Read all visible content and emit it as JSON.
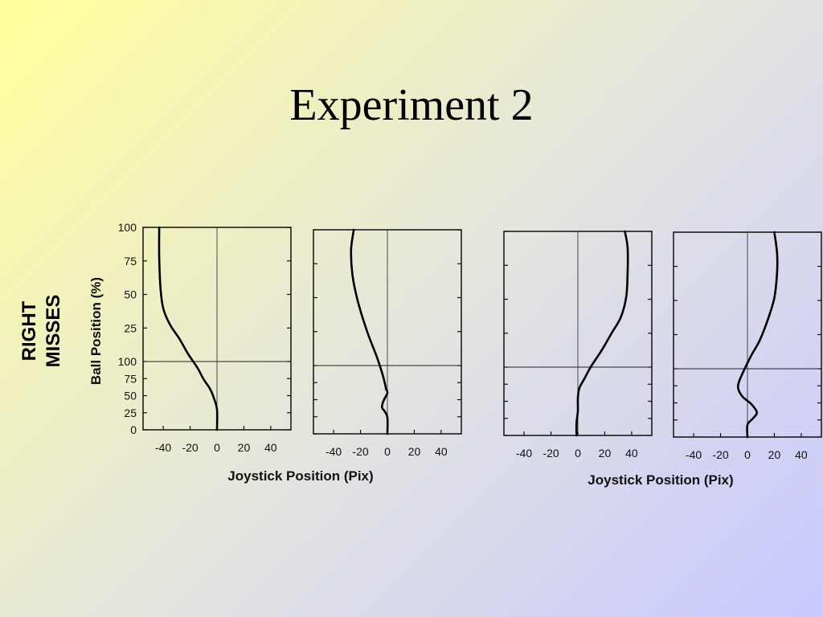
{
  "slide": {
    "title": "Experiment 2"
  },
  "figure": {
    "row_label": [
      "RIGHT",
      "MISSES"
    ],
    "ylabel": "Ball Position (%)",
    "xlabel": "Joystick Position (Pix)"
  },
  "chart_data": [
    {
      "type": "line",
      "xlabel": "Joystick Position (Pix)",
      "ylabel": "Ball Position (%)",
      "x_ticks": [
        "-40",
        "-20",
        "0",
        "20",
        "40"
      ],
      "y_ticks_upper": [
        "100",
        "75",
        "50",
        "25"
      ],
      "y_ticks_lower": [
        "100",
        "75",
        "50",
        "25",
        "0"
      ],
      "xlim": [
        -55,
        55
      ],
      "series": [
        {
          "values": [
            [
              -43,
              100
            ],
            [
              -43,
              85
            ],
            [
              -42,
              70
            ],
            [
              -40,
              60
            ],
            [
              -35,
              52
            ],
            [
              -28,
              45
            ],
            [
              -22,
              38
            ],
            [
              -18,
              34
            ],
            [
              -14,
              30
            ],
            [
              -10,
              25
            ],
            [
              -5,
              20
            ],
            [
              -2,
              15
            ],
            [
              0,
              10
            ],
            [
              0,
              0
            ]
          ]
        }
      ]
    },
    {
      "type": "line",
      "x_ticks": [
        "-40",
        "-20",
        "0",
        "20",
        "40"
      ],
      "xlim": [
        -55,
        55
      ],
      "series": [
        {
          "values": [
            [
              -25,
              100
            ],
            [
              -27,
              90
            ],
            [
              -26,
              78
            ],
            [
              -22,
              65
            ],
            [
              -15,
              50
            ],
            [
              -8,
              38
            ],
            [
              -4,
              30
            ],
            [
              -2,
              25
            ],
            [
              -1,
              22
            ],
            [
              0,
              20
            ],
            [
              -3,
              16
            ],
            [
              -4,
              13
            ],
            [
              -2,
              11
            ],
            [
              0,
              8
            ],
            [
              0,
              0
            ]
          ]
        }
      ]
    },
    {
      "type": "line",
      "x_ticks": [
        "-40",
        "-20",
        "0",
        "20",
        "40"
      ],
      "xlim": [
        -55,
        55
      ],
      "series": [
        {
          "values": [
            [
              35,
              100
            ],
            [
              37,
              92
            ],
            [
              37,
              80
            ],
            [
              36,
              68
            ],
            [
              32,
              58
            ],
            [
              25,
              50
            ],
            [
              18,
              42
            ],
            [
              10,
              34
            ],
            [
              5,
              28
            ],
            [
              1,
              23
            ],
            [
              0,
              18
            ],
            [
              0,
              12
            ],
            [
              -1,
              6
            ],
            [
              -1,
              0
            ]
          ]
        }
      ]
    },
    {
      "type": "line",
      "x_ticks": [
        "-40",
        "-20",
        "0",
        "20",
        "40"
      ],
      "xlim": [
        -55,
        55
      ],
      "series": [
        {
          "values": [
            [
              20,
              100
            ],
            [
              22,
              90
            ],
            [
              22,
              80
            ],
            [
              20,
              68
            ],
            [
              15,
              57
            ],
            [
              9,
              47
            ],
            [
              3,
              40
            ],
            [
              -3,
              32
            ],
            [
              -7,
              25
            ],
            [
              -4,
              20
            ],
            [
              3,
              16
            ],
            [
              7,
              12
            ],
            [
              4,
              9
            ],
            [
              0,
              6
            ],
            [
              0,
              0
            ]
          ]
        }
      ]
    }
  ]
}
